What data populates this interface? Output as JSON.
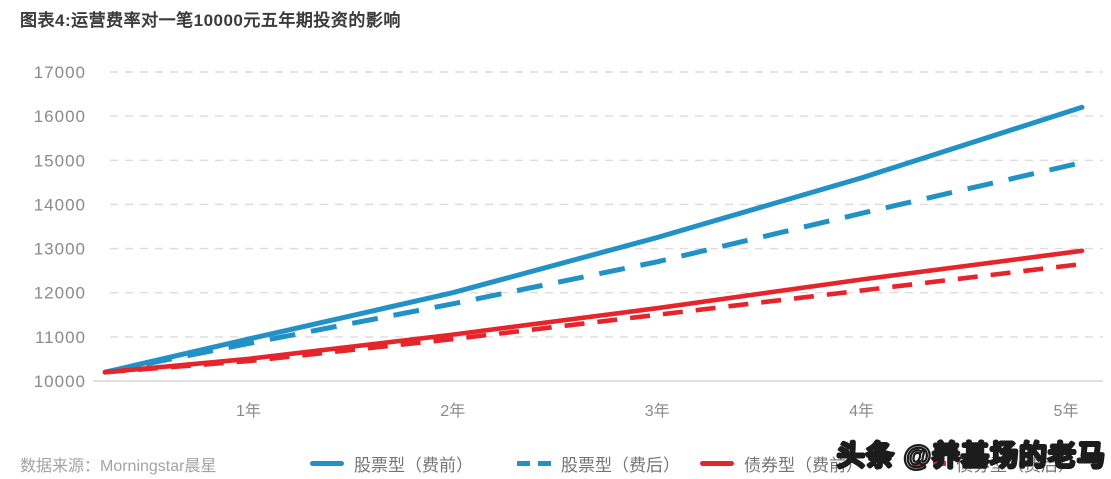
{
  "title": "图表4:运营费率对一笔10000元五年期投资的影响",
  "source_label": "数据来源：Morningstar晨星",
  "watermark": "头条 @养基场的老马",
  "colors": {
    "equity_blue": "#2191c6",
    "bond_red": "#e5242b",
    "grid": "#dcdcdc",
    "axis_line": "#d6d6d6",
    "axis_text": "#8a8a8a",
    "title_text": "#3b3b3b",
    "legend_text": "#757575",
    "source_text": "#a3a3a3",
    "watermark_fill": "#ffffff",
    "watermark_outline": "#1c1c1c"
  },
  "chart_data": {
    "type": "line",
    "title": "运营费率对一笔10000元五年期投资的影响",
    "categories": [
      "1年",
      "2年",
      "3年",
      "4年",
      "5年"
    ],
    "y_ticks": [
      17000,
      16000,
      15000,
      14000,
      13000,
      12000,
      11000,
      10000
    ],
    "ylim": [
      10000,
      17000
    ],
    "xlabel": "",
    "ylabel": "",
    "grid": "horizontal-dashed",
    "legend_position": "bottom",
    "start_value": 10200,
    "series": [
      {
        "name": "股票型（费前）",
        "color": "#2191c6",
        "style": "solid",
        "values": [
          10950,
          12000,
          13250,
          14600,
          16200
        ]
      },
      {
        "name": "股票型（费后）",
        "color": "#2191c6",
        "style": "dashed",
        "values": [
          10850,
          11750,
          12700,
          13800,
          14950
        ]
      },
      {
        "name": "债券型（费前）",
        "color": "#e5242b",
        "style": "solid",
        "values": [
          10500,
          11050,
          11650,
          12300,
          12950
        ]
      },
      {
        "name": "债券型（费后）",
        "color": "#e5242b",
        "style": "dashed",
        "values": [
          10450,
          10950,
          11500,
          12050,
          12650
        ]
      }
    ]
  }
}
